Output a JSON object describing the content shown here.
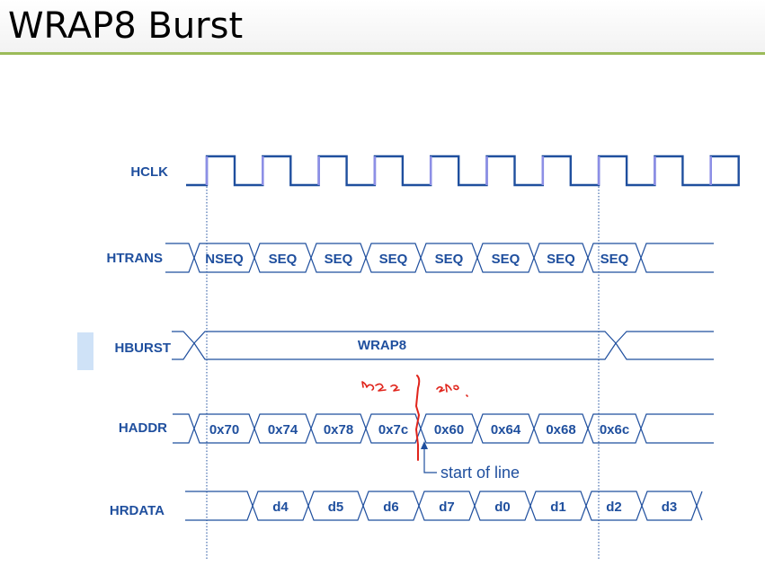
{
  "slide": {
    "title": "WRAP8 Burst"
  },
  "diagram": {
    "colors": {
      "signal": "#1f4f9e",
      "clock_edge": "#8d8fe6",
      "marker": "#e0241b",
      "title_rule": "#9bbb59"
    },
    "signals": {
      "hclk": {
        "label": "HCLK",
        "cycles": 10
      },
      "htrans": {
        "label": "HTRANS",
        "cells": [
          "NSEQ",
          "SEQ",
          "SEQ",
          "SEQ",
          "SEQ",
          "SEQ",
          "SEQ",
          "SEQ"
        ]
      },
      "hburst": {
        "label": "HBURST",
        "value": "WRAP8"
      },
      "haddr": {
        "label": "HADDR",
        "cells": [
          "0x70",
          "0x74",
          "0x78",
          "0x7c",
          "0x60",
          "0x64",
          "0x68",
          "0x6c"
        ]
      },
      "hrdata": {
        "label": "HRDATA",
        "cells": [
          "d4",
          "d5",
          "d6",
          "d7",
          "d0",
          "d1",
          "d2",
          "d3"
        ]
      }
    },
    "annotation": {
      "text": "start of line"
    }
  }
}
